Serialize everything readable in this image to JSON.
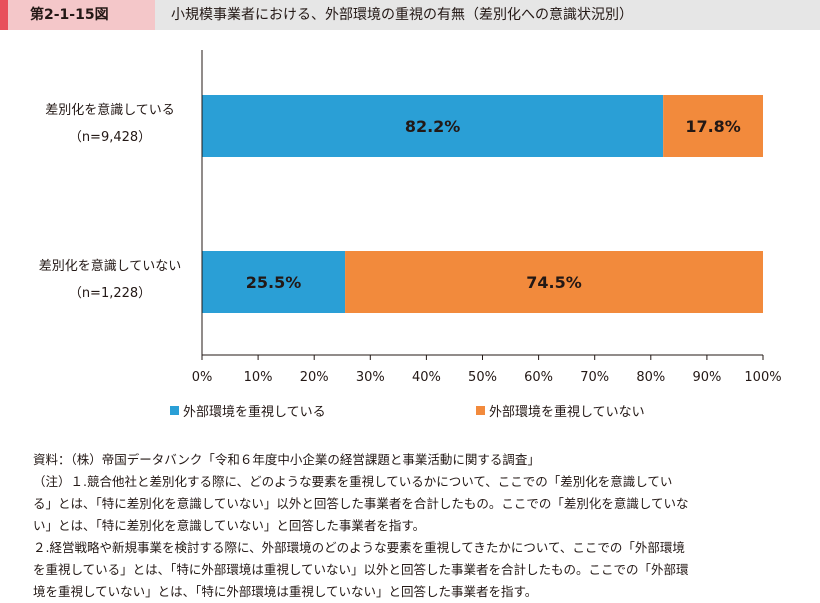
{
  "header": {
    "figure_number": "第2-1-15図",
    "title": "小規模事業者における、外部環境の重視の有無（差別化への意識状況別）"
  },
  "colors": {
    "series_1": "#2a9fd6",
    "series_2": "#f28a3c",
    "label_accent": "#e8505b"
  },
  "chart_data": {
    "type": "bar",
    "orientation": "horizontal",
    "stacked": true,
    "title": "小規模事業者における、外部環境の重視の有無（差別化への意識状況別）",
    "categories": [
      {
        "label": "差別化を意識している",
        "n": "（n=9,428）"
      },
      {
        "label": "差別化を意識していない",
        "n": "（n=1,228）"
      }
    ],
    "series": [
      {
        "name": "外部環境を重視している",
        "values": [
          82.2,
          25.5
        ],
        "labels": [
          "82.2%",
          "25.5%"
        ]
      },
      {
        "name": "外部環境を重視していない",
        "values": [
          17.8,
          74.5
        ],
        "labels": [
          "17.8%",
          "74.5%"
        ]
      }
    ],
    "xlim": [
      0,
      100
    ],
    "x_ticks": [
      "0%",
      "10%",
      "20%",
      "30%",
      "40%",
      "50%",
      "60%",
      "70%",
      "80%",
      "90%",
      "100%"
    ],
    "grid": false,
    "legend": "bottom"
  },
  "notes": {
    "source": "資料：（株）帝国データバンク「令和６年度中小企業の経営課題と事業活動に関する調査」",
    "note1_line1": "（注）１.競合他社と差別化する際に、どのような要素を重視しているかについて、ここでの「差別化を意識してい",
    "note1_line2": "る」とは、「特に差別化を意識していない」以外と回答した事業者を合計したもの。ここでの「差別化を意識していな",
    "note1_line3": "い」とは、「特に差別化を意識していない」と回答した事業者を指す。",
    "note2_line1": "２.経営戦略や新規事業を検討する際に、外部環境のどのような要素を重視してきたかについて、ここでの「外部環境",
    "note2_line2": "を重視している」とは、「特に外部環境は重視していない」以外と回答した事業者を合計したもの。ここでの「外部環",
    "note2_line3": "境を重視していない」とは、「特に外部環境は重視していない」と回答した事業者を指す。"
  }
}
